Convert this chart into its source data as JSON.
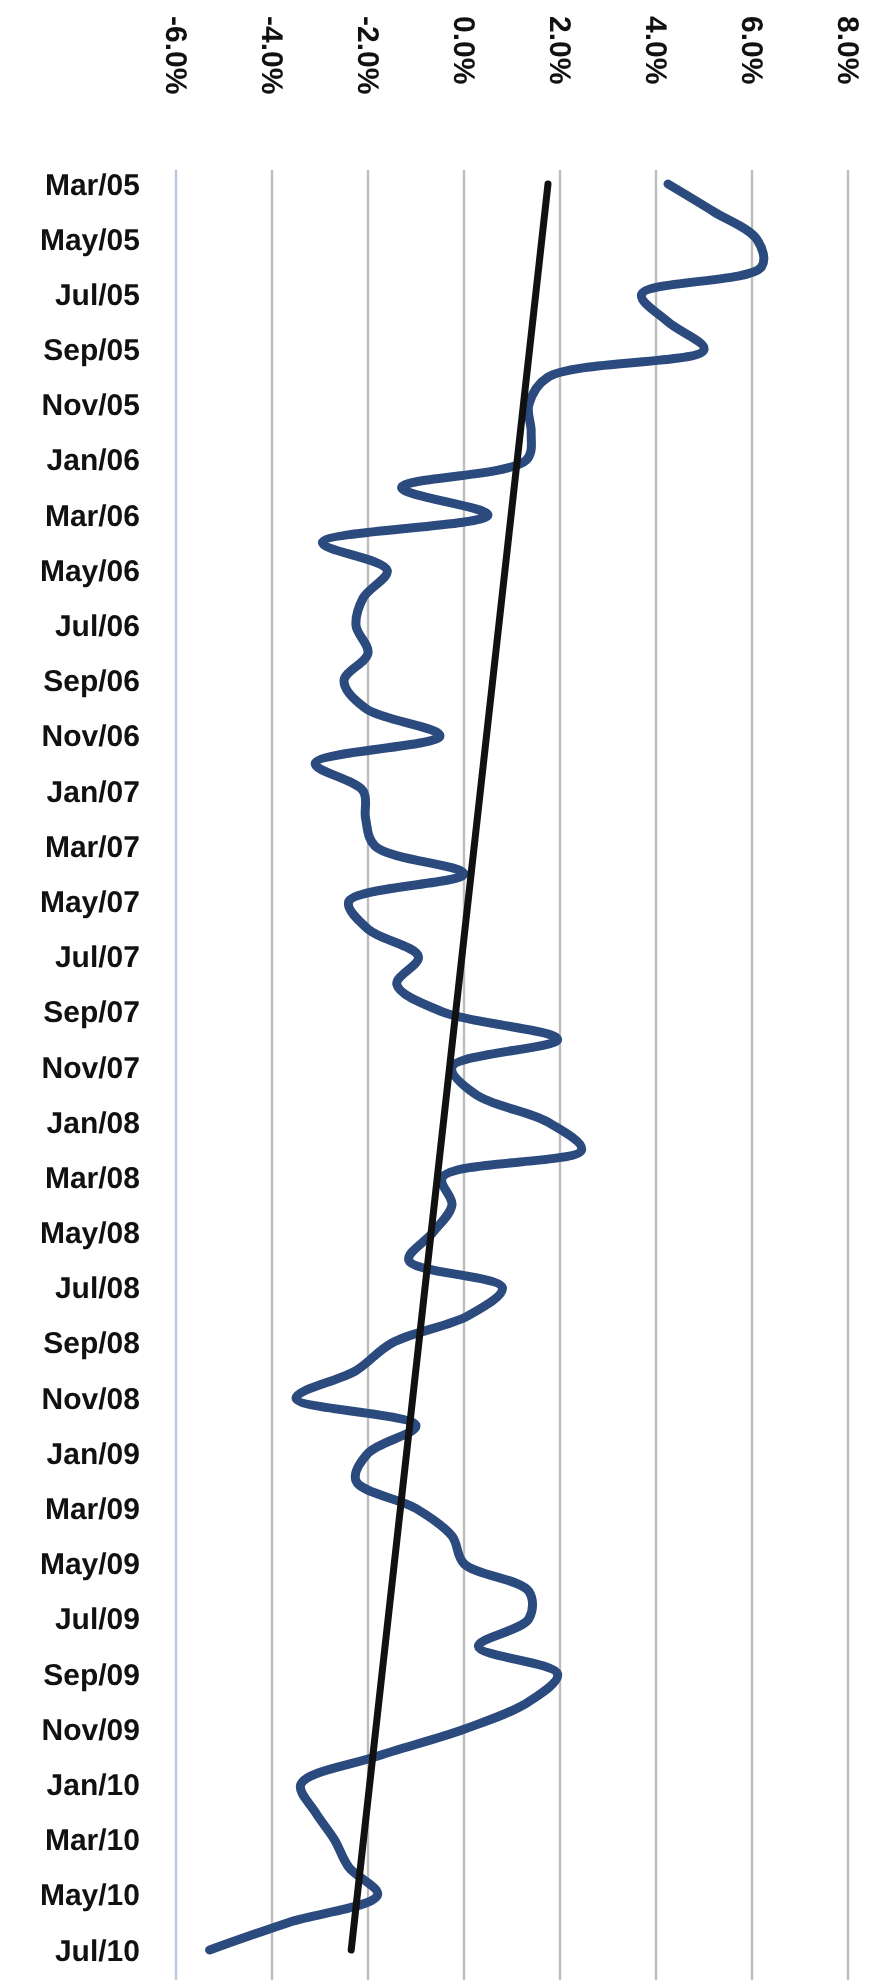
{
  "chart_data": {
    "type": "line",
    "orientation": "horizontal",
    "categories": [
      "Mar/05",
      null,
      "May/05",
      null,
      "Jul/05",
      null,
      "Sep/05",
      null,
      "Nov/05",
      null,
      "Jan/06",
      null,
      "Mar/06",
      null,
      "May/06",
      null,
      "Jul/06",
      null,
      "Sep/06",
      null,
      "Nov/06",
      null,
      "Jan/07",
      null,
      "Mar/07",
      null,
      "May/07",
      null,
      "Jul/07",
      null,
      "Sep/07",
      null,
      "Nov/07",
      null,
      "Jan/08",
      null,
      "Mar/08",
      null,
      "May/08",
      null,
      "Jul/08",
      null,
      "Sep/08",
      null,
      "Nov/08",
      null,
      "Jan/09",
      null,
      "Mar/09",
      null,
      "May/09",
      null,
      "Jul/09",
      null,
      "Sep/09",
      null,
      "Nov/09",
      null,
      "Jan/10",
      null,
      "Mar/10",
      null,
      "May/10",
      null,
      "Jul/10"
    ],
    "series": [
      {
        "color": "#2b4a7e",
        "values": [
          4.25,
          5.2,
          6.1,
          6.2,
          3.7,
          4.25,
          5.0,
          1.75,
          1.35,
          1.4,
          1.3,
          -1.3,
          0.5,
          -2.95,
          -1.6,
          -2.1,
          -2.25,
          -2.0,
          -2.5,
          -2.05,
          -0.5,
          -3.1,
          -2.1,
          -2.05,
          -1.85,
          0.0,
          -2.4,
          -2.0,
          -0.95,
          -1.4,
          -0.45,
          1.95,
          -0.25,
          0.25,
          1.75,
          2.45,
          -0.45,
          -0.25,
          -0.65,
          -1.15,
          0.8,
          0.1,
          -1.5,
          -2.25,
          -3.5,
          -1.0,
          -2.0,
          -2.25,
          -1.0,
          -0.25,
          0.0,
          1.35,
          1.35,
          0.3,
          1.95,
          1.35,
          0.0,
          -1.85,
          -3.4,
          -3.1,
          -2.7,
          -2.4,
          -1.8,
          -3.65,
          -5.3
        ]
      },
      {
        "type": "line",
        "color": "#111111",
        "x": [
          "Mar/05",
          "Jul/10"
        ],
        "values": [
          1.75,
          -2.35
        ]
      }
    ],
    "xlim": [
      -6,
      8
    ],
    "xticks": [
      {
        "value": -6,
        "label": "-6.0%"
      },
      {
        "value": -4,
        "label": "-4.0%"
      },
      {
        "value": -2,
        "label": "-2.0%"
      },
      {
        "value": 0,
        "label": "0.0%"
      },
      {
        "value": 2,
        "label": "2.0%"
      },
      {
        "value": 4,
        "label": "4.0%"
      },
      {
        "value": 6,
        "label": "6.0%"
      },
      {
        "value": 8,
        "label": "8.0%"
      }
    ],
    "grid": "x",
    "marker": "none",
    "line_style": "solid"
  }
}
